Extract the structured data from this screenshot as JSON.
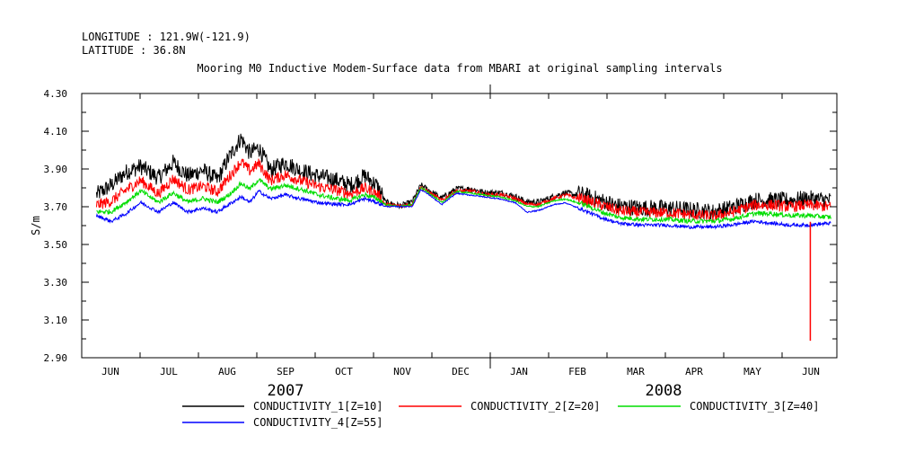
{
  "chart_data": {
    "type": "line",
    "header": {
      "longitude": "LONGITUDE : 121.9W(-121.9)",
      "latitude": "LATITUDE : 36.8N"
    },
    "title": "Mooring M0 Inductive Modem-Surface data from MBARI at original sampling intervals",
    "ylabel": "S/m",
    "ylim": [
      2.9,
      4.3
    ],
    "y_ticks": [
      "2.90",
      "3.10",
      "3.30",
      "3.50",
      "3.70",
      "3.90",
      "4.10",
      "4.30"
    ],
    "x_months": [
      "JUN",
      "JUL",
      "AUG",
      "SEP",
      "OCT",
      "NOV",
      "DEC",
      "JAN",
      "FEB",
      "MAR",
      "APR",
      "MAY",
      "JUN"
    ],
    "x_years": [
      "2007",
      "2008"
    ],
    "x_range_months": [
      0,
      12.8
    ],
    "series": [
      {
        "name": "CONDUCTIVITY_1[Z=10]",
        "color": "#000000",
        "noise": 0.09,
        "points": [
          [
            0.25,
            3.75
          ],
          [
            0.5,
            3.8
          ],
          [
            0.75,
            3.87
          ],
          [
            1.0,
            3.9
          ],
          [
            1.3,
            3.84
          ],
          [
            1.55,
            3.92
          ],
          [
            1.8,
            3.85
          ],
          [
            2.05,
            3.88
          ],
          [
            2.3,
            3.83
          ],
          [
            2.5,
            3.95
          ],
          [
            2.7,
            4.05
          ],
          [
            2.85,
            3.97
          ],
          [
            3.0,
            4.0
          ],
          [
            3.2,
            3.88
          ],
          [
            3.45,
            3.92
          ],
          [
            3.7,
            3.88
          ],
          [
            4.0,
            3.85
          ],
          [
            4.3,
            3.83
          ],
          [
            4.55,
            3.8
          ],
          [
            4.8,
            3.85
          ],
          [
            5.0,
            3.8
          ],
          [
            5.15,
            3.72
          ],
          [
            5.4,
            3.7
          ],
          [
            5.6,
            3.72
          ],
          [
            5.75,
            3.81
          ],
          [
            5.9,
            3.78
          ],
          [
            6.1,
            3.74
          ],
          [
            6.35,
            3.79
          ],
          [
            6.6,
            3.79
          ],
          [
            6.85,
            3.77
          ],
          [
            7.1,
            3.77
          ],
          [
            7.35,
            3.75
          ],
          [
            7.55,
            3.72
          ],
          [
            7.75,
            3.72
          ],
          [
            8.0,
            3.75
          ],
          [
            8.2,
            3.77
          ],
          [
            8.5,
            3.75
          ],
          [
            8.8,
            3.72
          ],
          [
            9.1,
            3.69
          ],
          [
            9.5,
            3.68
          ],
          [
            9.9,
            3.68
          ],
          [
            10.3,
            3.67
          ],
          [
            10.7,
            3.66
          ],
          [
            11.0,
            3.68
          ],
          [
            11.4,
            3.72
          ],
          [
            11.7,
            3.72
          ],
          [
            12.0,
            3.72
          ],
          [
            12.3,
            3.73
          ],
          [
            12.7,
            3.72
          ]
        ]
      },
      {
        "name": "CONDUCTIVITY_2[Z=20]",
        "color": "#ff0000",
        "noise": 0.06,
        "points": [
          [
            0.25,
            3.7
          ],
          [
            0.5,
            3.72
          ],
          [
            0.75,
            3.78
          ],
          [
            1.0,
            3.83
          ],
          [
            1.3,
            3.76
          ],
          [
            1.55,
            3.84
          ],
          [
            1.8,
            3.78
          ],
          [
            2.05,
            3.8
          ],
          [
            2.3,
            3.77
          ],
          [
            2.5,
            3.85
          ],
          [
            2.7,
            3.93
          ],
          [
            2.85,
            3.88
          ],
          [
            3.0,
            3.92
          ],
          [
            3.2,
            3.83
          ],
          [
            3.45,
            3.86
          ],
          [
            3.7,
            3.83
          ],
          [
            4.0,
            3.8
          ],
          [
            4.3,
            3.78
          ],
          [
            4.55,
            3.76
          ],
          [
            4.8,
            3.79
          ],
          [
            5.0,
            3.76
          ],
          [
            5.15,
            3.71
          ],
          [
            5.4,
            3.7
          ],
          [
            5.6,
            3.71
          ],
          [
            5.75,
            3.8
          ],
          [
            5.9,
            3.77
          ],
          [
            6.1,
            3.73
          ],
          [
            6.35,
            3.78
          ],
          [
            6.6,
            3.78
          ],
          [
            6.85,
            3.76
          ],
          [
            7.1,
            3.76
          ],
          [
            7.35,
            3.74
          ],
          [
            7.55,
            3.71
          ],
          [
            7.75,
            3.71
          ],
          [
            8.0,
            3.74
          ],
          [
            8.2,
            3.76
          ],
          [
            8.5,
            3.73
          ],
          [
            8.8,
            3.7
          ],
          [
            9.1,
            3.67
          ],
          [
            9.5,
            3.66
          ],
          [
            9.9,
            3.66
          ],
          [
            10.3,
            3.65
          ],
          [
            10.7,
            3.64
          ],
          [
            11.0,
            3.66
          ],
          [
            11.4,
            3.7
          ],
          [
            11.7,
            3.7
          ],
          [
            12.0,
            3.69
          ],
          [
            12.3,
            3.7
          ],
          [
            12.7,
            3.69
          ]
        ]
      },
      {
        "name": "CONDUCTIVITY_3[Z=40]",
        "color": "#00dd00",
        "noise": 0.025,
        "points": [
          [
            0.25,
            3.67
          ],
          [
            0.5,
            3.67
          ],
          [
            0.75,
            3.72
          ],
          [
            1.0,
            3.78
          ],
          [
            1.3,
            3.72
          ],
          [
            1.55,
            3.77
          ],
          [
            1.8,
            3.72
          ],
          [
            2.05,
            3.74
          ],
          [
            2.3,
            3.72
          ],
          [
            2.5,
            3.76
          ],
          [
            2.7,
            3.82
          ],
          [
            2.85,
            3.79
          ],
          [
            3.0,
            3.84
          ],
          [
            3.2,
            3.79
          ],
          [
            3.45,
            3.81
          ],
          [
            3.7,
            3.79
          ],
          [
            4.0,
            3.76
          ],
          [
            4.3,
            3.74
          ],
          [
            4.55,
            3.73
          ],
          [
            4.8,
            3.76
          ],
          [
            5.0,
            3.74
          ],
          [
            5.15,
            3.71
          ],
          [
            5.4,
            3.7
          ],
          [
            5.6,
            3.71
          ],
          [
            5.75,
            3.8
          ],
          [
            5.9,
            3.77
          ],
          [
            6.1,
            3.72
          ],
          [
            6.35,
            3.78
          ],
          [
            6.6,
            3.77
          ],
          [
            6.85,
            3.76
          ],
          [
            7.1,
            3.75
          ],
          [
            7.35,
            3.73
          ],
          [
            7.55,
            3.7
          ],
          [
            7.75,
            3.7
          ],
          [
            8.0,
            3.73
          ],
          [
            8.2,
            3.74
          ],
          [
            8.5,
            3.71
          ],
          [
            8.8,
            3.67
          ],
          [
            9.1,
            3.64
          ],
          [
            9.5,
            3.63
          ],
          [
            9.9,
            3.63
          ],
          [
            10.3,
            3.62
          ],
          [
            10.7,
            3.62
          ],
          [
            11.0,
            3.63
          ],
          [
            11.4,
            3.66
          ],
          [
            11.7,
            3.66
          ],
          [
            12.0,
            3.65
          ],
          [
            12.3,
            3.65
          ],
          [
            12.7,
            3.64
          ]
        ]
      },
      {
        "name": "CONDUCTIVITY_4[Z=55]",
        "color": "#0000ff",
        "noise": 0.018,
        "points": [
          [
            0.25,
            3.65
          ],
          [
            0.5,
            3.62
          ],
          [
            0.75,
            3.66
          ],
          [
            1.0,
            3.72
          ],
          [
            1.3,
            3.67
          ],
          [
            1.55,
            3.72
          ],
          [
            1.8,
            3.67
          ],
          [
            2.05,
            3.69
          ],
          [
            2.3,
            3.67
          ],
          [
            2.5,
            3.71
          ],
          [
            2.7,
            3.75
          ],
          [
            2.85,
            3.72
          ],
          [
            3.0,
            3.78
          ],
          [
            3.2,
            3.74
          ],
          [
            3.45,
            3.76
          ],
          [
            3.7,
            3.74
          ],
          [
            4.0,
            3.72
          ],
          [
            4.3,
            3.71
          ],
          [
            4.55,
            3.71
          ],
          [
            4.8,
            3.74
          ],
          [
            5.0,
            3.72
          ],
          [
            5.15,
            3.7
          ],
          [
            5.4,
            3.7
          ],
          [
            5.6,
            3.7
          ],
          [
            5.75,
            3.79
          ],
          [
            5.9,
            3.76
          ],
          [
            6.1,
            3.71
          ],
          [
            6.35,
            3.77
          ],
          [
            6.6,
            3.76
          ],
          [
            6.85,
            3.75
          ],
          [
            7.1,
            3.74
          ],
          [
            7.35,
            3.72
          ],
          [
            7.55,
            3.67
          ],
          [
            7.75,
            3.68
          ],
          [
            8.0,
            3.71
          ],
          [
            8.2,
            3.72
          ],
          [
            8.5,
            3.68
          ],
          [
            8.8,
            3.64
          ],
          [
            9.1,
            3.61
          ],
          [
            9.5,
            3.6
          ],
          [
            9.9,
            3.6
          ],
          [
            10.3,
            3.59
          ],
          [
            10.7,
            3.59
          ],
          [
            11.0,
            3.6
          ],
          [
            11.4,
            3.62
          ],
          [
            11.7,
            3.61
          ],
          [
            12.0,
            3.6
          ],
          [
            12.3,
            3.6
          ],
          [
            12.7,
            3.61
          ]
        ]
      }
    ],
    "annotations": [
      {
        "series": "CONDUCTIVITY_2[Z=20]",
        "x": 12.35,
        "y_from": 3.62,
        "y_to": 2.99,
        "note": "spike to ~2.99 S/m"
      }
    ]
  }
}
